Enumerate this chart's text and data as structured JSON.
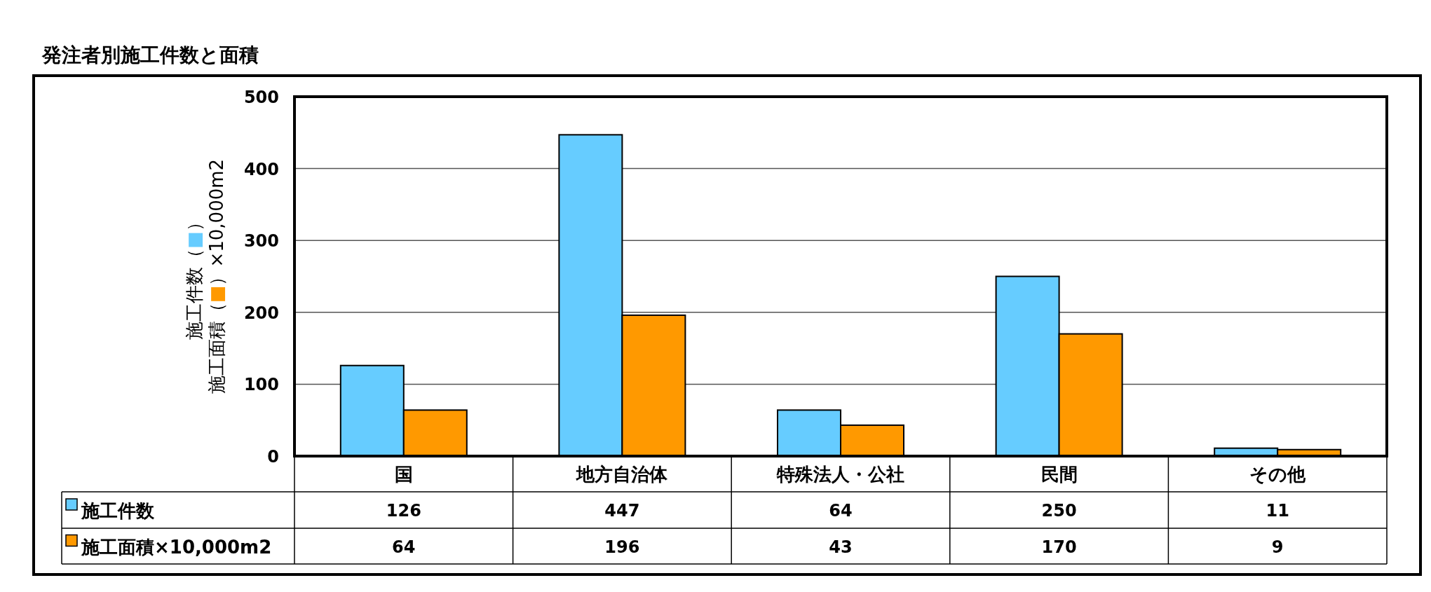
{
  "chart_data": {
    "type": "bar",
    "title": "発注者別施工件数と面積",
    "ylabel": "施工件数（■）施工面積（■）×10,000m2",
    "categories": [
      "国",
      "地方自治体",
      "特殊法人・公社",
      "民間",
      "その他"
    ],
    "series": [
      {
        "name": "施工件数",
        "color": "#66ccff",
        "values": [
          126,
          447,
          64,
          250,
          11
        ]
      },
      {
        "name": "施工面積×10,000m2",
        "color": "#ff9900",
        "values": [
          64,
          196,
          43,
          170,
          9
        ]
      }
    ],
    "ylim": [
      0,
      500
    ],
    "yticks": [
      0,
      100,
      200,
      300,
      400,
      500
    ],
    "grid": "y",
    "legend": "bottom",
    "data_labels": true
  }
}
